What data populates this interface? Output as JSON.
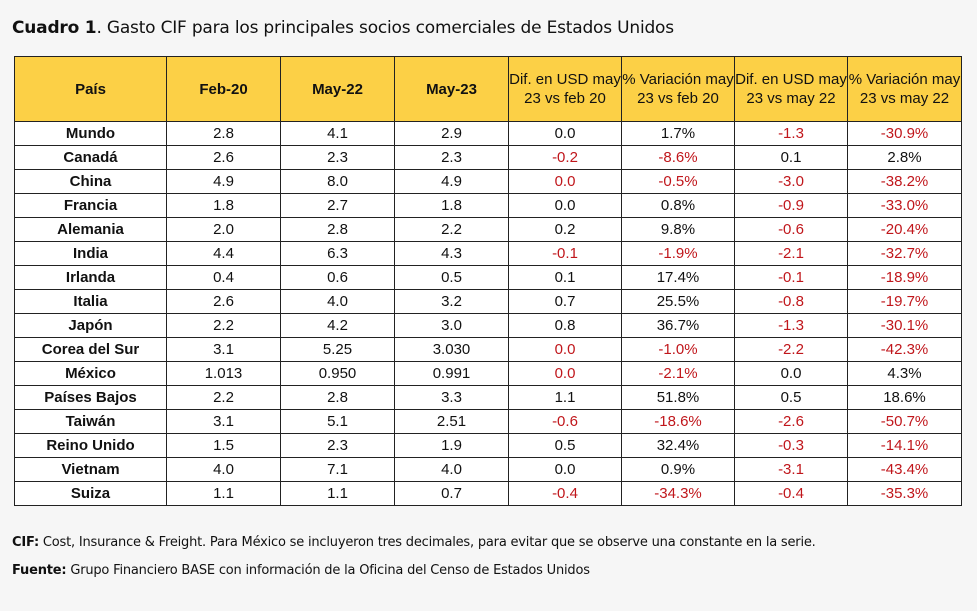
{
  "title": {
    "prefix": "Cuadro 1",
    "text": ". Gasto CIF para los principales socios comerciales de Estados Unidos"
  },
  "table": {
    "headers": [
      "País",
      "Feb-20",
      "May-22",
      "May-23",
      "Dif. en USD may 23 vs feb 20",
      "% Variación may 23 vs feb 20",
      "Dif. en USD may 23 vs may 22",
      "% Variación may 23 vs may 22"
    ],
    "rows": [
      [
        "Mundo",
        "2.8",
        "4.1",
        "2.9",
        "0.0",
        "1.7%",
        "-1.3",
        "-30.9%"
      ],
      [
        "Canadá",
        "2.6",
        "2.3",
        "2.3",
        "-0.2",
        "-8.6%",
        "0.1",
        "2.8%"
      ],
      [
        "China",
        "4.9",
        "8.0",
        "4.9",
        "0.0",
        "-0.5%",
        "-3.0",
        "-38.2%"
      ],
      [
        "Francia",
        "1.8",
        "2.7",
        "1.8",
        "0.0",
        "0.8%",
        "-0.9",
        "-33.0%"
      ],
      [
        "Alemania",
        "2.0",
        "2.8",
        "2.2",
        "0.2",
        "9.8%",
        "-0.6",
        "-20.4%"
      ],
      [
        "India",
        "4.4",
        "6.3",
        "4.3",
        "-0.1",
        "-1.9%",
        "-2.1",
        "-32.7%"
      ],
      [
        "Irlanda",
        "0.4",
        "0.6",
        "0.5",
        "0.1",
        "17.4%",
        "-0.1",
        "-18.9%"
      ],
      [
        "Italia",
        "2.6",
        "4.0",
        "3.2",
        "0.7",
        "25.5%",
        "-0.8",
        "-19.7%"
      ],
      [
        "Japón",
        "2.2",
        "4.2",
        "3.0",
        "0.8",
        "36.7%",
        "-1.3",
        "-30.1%"
      ],
      [
        "Corea del Sur",
        "3.1",
        "5.25",
        "3.030",
        "0.0",
        "-1.0%",
        "-2.2",
        "-42.3%"
      ],
      [
        "México",
        "1.013",
        "0.950",
        "0.991",
        "0.0",
        "-2.1%",
        "0.0",
        "4.3%"
      ],
      [
        "Países Bajos",
        "2.2",
        "2.8",
        "3.3",
        "1.1",
        "51.8%",
        "0.5",
        "18.6%"
      ],
      [
        "Taiwán",
        "3.1",
        "5.1",
        "2.51",
        "-0.6",
        "-18.6%",
        "-2.6",
        "-50.7%"
      ],
      [
        "Reino Unido",
        "1.5",
        "2.3",
        "1.9",
        "0.5",
        "32.4%",
        "-0.3",
        "-14.1%"
      ],
      [
        "Vietnam",
        "4.0",
        "7.1",
        "4.0",
        "0.0",
        "0.9%",
        "-3.1",
        "-43.4%"
      ],
      [
        "Suiza",
        "1.1",
        "1.1",
        "0.7",
        "-0.4",
        "-34.3%",
        "-0.4",
        "-35.3%"
      ]
    ],
    "red_cells": [
      [
        0,
        6
      ],
      [
        0,
        7
      ],
      [
        1,
        4
      ],
      [
        1,
        5
      ],
      [
        2,
        4
      ],
      [
        2,
        5
      ],
      [
        2,
        6
      ],
      [
        2,
        7
      ],
      [
        3,
        6
      ],
      [
        3,
        7
      ],
      [
        4,
        6
      ],
      [
        4,
        7
      ],
      [
        5,
        4
      ],
      [
        5,
        5
      ],
      [
        5,
        6
      ],
      [
        5,
        7
      ],
      [
        6,
        6
      ],
      [
        6,
        7
      ],
      [
        7,
        6
      ],
      [
        7,
        7
      ],
      [
        8,
        6
      ],
      [
        8,
        7
      ],
      [
        9,
        4
      ],
      [
        9,
        5
      ],
      [
        9,
        6
      ],
      [
        9,
        7
      ],
      [
        10,
        4
      ],
      [
        10,
        5
      ],
      [
        12,
        4
      ],
      [
        12,
        5
      ],
      [
        12,
        6
      ],
      [
        12,
        7
      ],
      [
        13,
        6
      ],
      [
        13,
        7
      ],
      [
        14,
        6
      ],
      [
        14,
        7
      ],
      [
        15,
        4
      ],
      [
        15,
        5
      ],
      [
        15,
        6
      ],
      [
        15,
        7
      ]
    ],
    "colors": {
      "header_bg": "#fcd046",
      "negative_text": "#c0161b",
      "cell_bg": "#ffffff",
      "border": "#222222"
    }
  },
  "notes": {
    "cif_label": "CIF:",
    "cif_text": " Cost, Insurance & Freight. Para México se incluyeron tres decimales, para evitar que se observe una constante en la serie.",
    "source_label": "Fuente:",
    "source_text": " Grupo Financiero BASE con información de la Oficina del Censo de Estados Unidos"
  }
}
